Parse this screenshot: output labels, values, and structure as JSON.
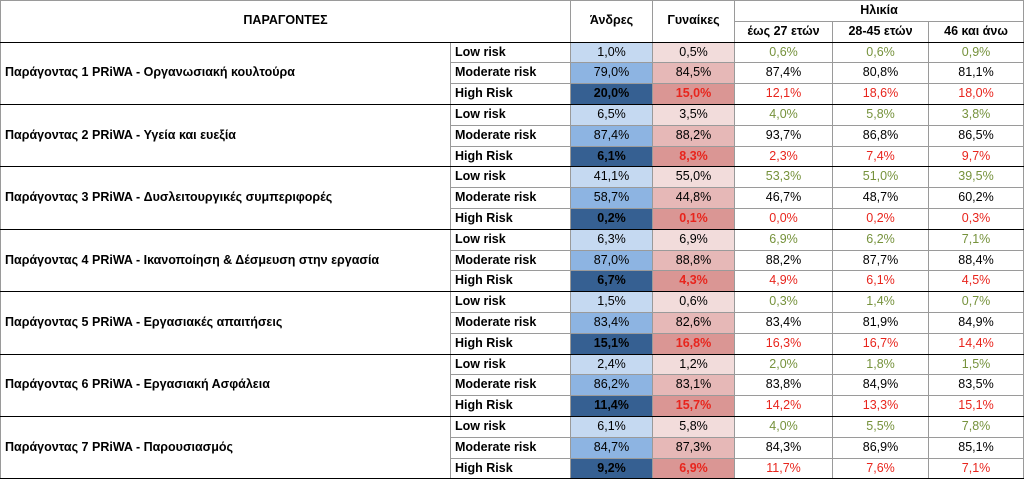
{
  "header": {
    "factors_label": "ΠΑΡΑΓΟΝΤΕΣ",
    "men_label": "Άνδρες",
    "women_label": "Γυναίκες",
    "age_label": "Ηλικία",
    "age_groups": [
      "έως 27 ετών",
      "28-45 ετών",
      "46 και άνω"
    ]
  },
  "risk_levels": [
    "Low risk",
    "Moderate risk",
    "High Risk"
  ],
  "colors": {
    "men_low": "#c5d9f1",
    "men_moderate": "#8db4e2",
    "men_high": "#366092",
    "women_low": "#f2dcdb",
    "women_moderate": "#e6b8b7",
    "women_high": "#da9694",
    "age_low_text": "#76923c",
    "age_high_text": "#e8251d"
  },
  "factors": [
    {
      "name": "Παράγοντας 1 PRiWA - Οργανωσιακή κουλτούρα",
      "rows": [
        {
          "men": "1,0%",
          "women": "0,5%",
          "a1": "0,6%",
          "a2": "0,6%",
          "a3": "0,9%"
        },
        {
          "men": "79,0%",
          "women": "84,5%",
          "a1": "87,4%",
          "a2": "80,8%",
          "a3": "81,1%"
        },
        {
          "men": "20,0%",
          "women": "15,0%",
          "a1": "12,1%",
          "a2": "18,6%",
          "a3": "18,0%"
        }
      ]
    },
    {
      "name": "Παράγοντας 2 PRiWA - Υγεία και ευεξία",
      "rows": [
        {
          "men": "6,5%",
          "women": "3,5%",
          "a1": "4,0%",
          "a2": "5,8%",
          "a3": "3,8%"
        },
        {
          "men": "87,4%",
          "women": "88,2%",
          "a1": "93,7%",
          "a2": "86,8%",
          "a3": "86,5%"
        },
        {
          "men": "6,1%",
          "women": "8,3%",
          "a1": "2,3%",
          "a2": "7,4%",
          "a3": "9,7%"
        }
      ]
    },
    {
      "name": "Παράγοντας 3 PRiWA - Δυσλειτουργικές συμπεριφορές",
      "rows": [
        {
          "men": "41,1%",
          "women": "55,0%",
          "a1": "53,3%",
          "a2": "51,0%",
          "a3": "39,5%"
        },
        {
          "men": "58,7%",
          "women": "44,8%",
          "a1": "46,7%",
          "a2": "48,7%",
          "a3": "60,2%"
        },
        {
          "men": "0,2%",
          "women": "0,1%",
          "a1": "0,0%",
          "a2": "0,2%",
          "a3": "0,3%"
        }
      ]
    },
    {
      "name": "Παράγοντας 4 PRiWA - Ικανοποίηση & Δέσμευση στην εργασία",
      "rows": [
        {
          "men": "6,3%",
          "women": "6,9%",
          "a1": "6,9%",
          "a2": "6,2%",
          "a3": "7,1%"
        },
        {
          "men": "87,0%",
          "women": "88,8%",
          "a1": "88,2%",
          "a2": "87,7%",
          "a3": "88,4%"
        },
        {
          "men": "6,7%",
          "women": "4,3%",
          "a1": "4,9%",
          "a2": "6,1%",
          "a3": "4,5%"
        }
      ]
    },
    {
      "name": "Παράγοντας 5 PRiWA - Εργασιακές απαιτήσεις",
      "rows": [
        {
          "men": "1,5%",
          "women": "0,6%",
          "a1": "0,3%",
          "a2": "1,4%",
          "a3": "0,7%"
        },
        {
          "men": "83,4%",
          "women": "82,6%",
          "a1": "83,4%",
          "a2": "81,9%",
          "a3": "84,9%"
        },
        {
          "men": "15,1%",
          "women": "16,8%",
          "a1": "16,3%",
          "a2": "16,7%",
          "a3": "14,4%"
        }
      ]
    },
    {
      "name": "Παράγοντας 6 PRiWA - Εργασιακή Ασφάλεια",
      "rows": [
        {
          "men": "2,4%",
          "women": "1,2%",
          "a1": "2,0%",
          "a2": "1,8%",
          "a3": "1,5%"
        },
        {
          "men": "86,2%",
          "women": "83,1%",
          "a1": "83,8%",
          "a2": "84,9%",
          "a3": "83,5%"
        },
        {
          "men": "11,4%",
          "women": "15,7%",
          "a1": "14,2%",
          "a2": "13,3%",
          "a3": "15,1%"
        }
      ]
    },
    {
      "name": "Παράγοντας 7 PRiWA - Παρουσιασμός",
      "rows": [
        {
          "men": "6,1%",
          "women": "5,8%",
          "a1": "4,0%",
          "a2": "5,5%",
          "a3": "7,8%"
        },
        {
          "men": "84,7%",
          "women": "87,3%",
          "a1": "84,3%",
          "a2": "86,9%",
          "a3": "85,1%"
        },
        {
          "men": "9,2%",
          "women": "6,9%",
          "a1": "11,7%",
          "a2": "7,6%",
          "a3": "7,1%"
        }
      ]
    }
  ]
}
